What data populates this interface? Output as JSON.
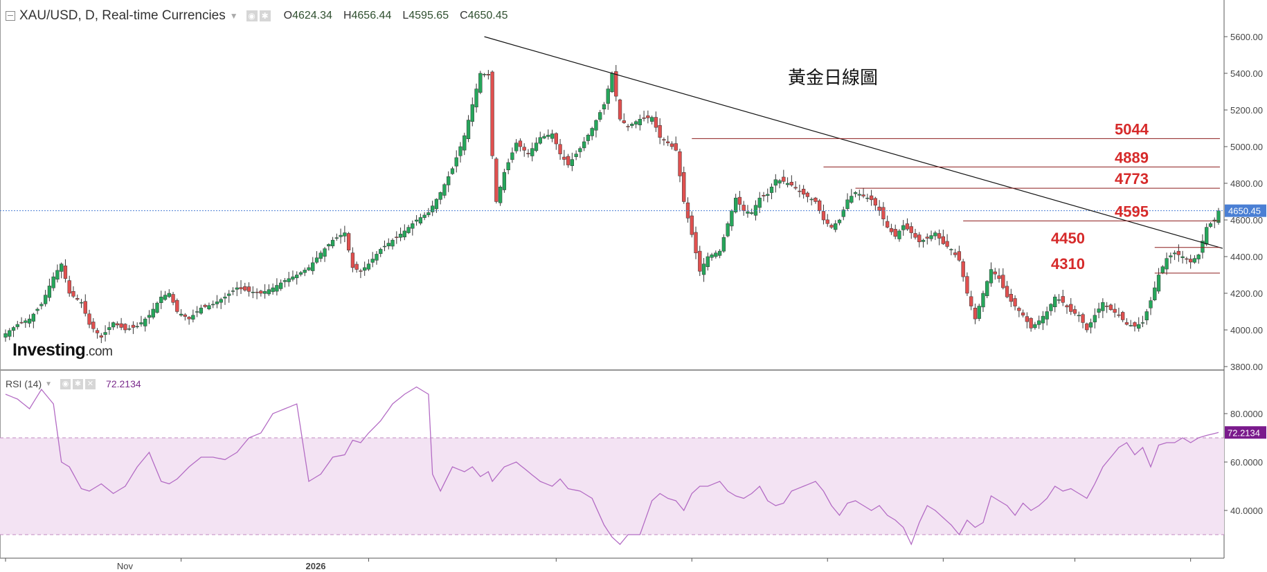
{
  "header": {
    "symbol": "XAU/USD, D, Real-time Currencies",
    "open_label": "O",
    "open": "4624.34",
    "high_label": "H",
    "high": "4656.44",
    "low_label": "L",
    "low": "4595.65",
    "close_label": "C",
    "close": "4650.45"
  },
  "rsi_header": {
    "label": "RSI (14)",
    "value": "72.2134"
  },
  "logo": {
    "brand": "Investing",
    "suffix": ".com"
  },
  "annotation_title": "黃金日線圖",
  "colors": {
    "up": "#26a65b",
    "down": "#e0504f",
    "level": "#8b1a1a",
    "level_text": "#d62a2a",
    "rsi": "#b36bc4",
    "rsi_band": "#f3e3f3",
    "price_tag": "#4a7fd4",
    "rsi_tag": "#7a1a8c"
  },
  "chart_data": [
    {
      "type": "candlestick",
      "title": "XAU/USD, D, Real-time Currencies",
      "ylim": [
        3800,
        5800
      ],
      "y_ticks": [
        "5600.00",
        "5400.00",
        "5200.00",
        "5000.00",
        "4800.00",
        "4600.00",
        "4400.00",
        "4200.00",
        "4000.00",
        "3800.00"
      ],
      "x_tick_labels": [
        "Nov",
        "2026"
      ],
      "last_price": "4650.45",
      "resistance_support_levels": [
        "5044",
        "4889",
        "4773",
        "4595",
        "4450",
        "4310"
      ],
      "trendline": {
        "from": 5600,
        "to": 4445
      },
      "anchors": [
        [
          0,
          3980
        ],
        [
          3,
          4030
        ],
        [
          6,
          4060
        ],
        [
          9,
          4140
        ],
        [
          12,
          4290
        ],
        [
          14,
          4360
        ],
        [
          16,
          4200
        ],
        [
          19,
          4150
        ],
        [
          21,
          4030
        ],
        [
          24,
          3960
        ],
        [
          27,
          4040
        ],
        [
          30,
          4000
        ],
        [
          33,
          4020
        ],
        [
          36,
          4080
        ],
        [
          39,
          4180
        ],
        [
          41,
          4200
        ],
        [
          43,
          4100
        ],
        [
          46,
          4060
        ],
        [
          49,
          4120
        ],
        [
          52,
          4140
        ],
        [
          55,
          4180
        ],
        [
          58,
          4230
        ],
        [
          61,
          4210
        ],
        [
          64,
          4200
        ],
        [
          67,
          4230
        ],
        [
          70,
          4270
        ],
        [
          73,
          4300
        ],
        [
          76,
          4340
        ],
        [
          79,
          4420
        ],
        [
          82,
          4490
        ],
        [
          85,
          4530
        ],
        [
          87,
          4340
        ],
        [
          89,
          4320
        ],
        [
          91,
          4360
        ],
        [
          94,
          4440
        ],
        [
          97,
          4490
        ],
        [
          100,
          4540
        ],
        [
          103,
          4600
        ],
        [
          106,
          4640
        ],
        [
          109,
          4750
        ],
        [
          112,
          4880
        ],
        [
          115,
          5060
        ],
        [
          117,
          5230
        ],
        [
          119,
          5400
        ],
        [
          121,
          5390
        ],
        [
          122,
          4950
        ],
        [
          123,
          4700
        ],
        [
          125,
          4860
        ],
        [
          128,
          5020
        ],
        [
          131,
          4960
        ],
        [
          134,
          5050
        ],
        [
          137,
          5070
        ],
        [
          139,
          4960
        ],
        [
          141,
          4900
        ],
        [
          144,
          4990
        ],
        [
          147,
          5100
        ],
        [
          150,
          5230
        ],
        [
          152,
          5400
        ],
        [
          154,
          5150
        ],
        [
          156,
          5110
        ],
        [
          159,
          5150
        ],
        [
          162,
          5160
        ],
        [
          164,
          5050
        ],
        [
          166,
          5020
        ],
        [
          168,
          4980
        ],
        [
          170,
          4700
        ],
        [
          172,
          4520
        ],
        [
          174,
          4320
        ],
        [
          176,
          4400
        ],
        [
          179,
          4430
        ],
        [
          181,
          4580
        ],
        [
          183,
          4720
        ],
        [
          185,
          4650
        ],
        [
          187,
          4640
        ],
        [
          189,
          4720
        ],
        [
          191,
          4740
        ],
        [
          193,
          4820
        ],
        [
          195,
          4810
        ],
        [
          197,
          4790
        ],
        [
          200,
          4740
        ],
        [
          203,
          4700
        ],
        [
          205,
          4600
        ],
        [
          207,
          4560
        ],
        [
          209,
          4600
        ],
        [
          211,
          4710
        ],
        [
          213,
          4750
        ],
        [
          215,
          4730
        ],
        [
          217,
          4710
        ],
        [
          219,
          4650
        ],
        [
          221,
          4560
        ],
        [
          223,
          4510
        ],
        [
          225,
          4570
        ],
        [
          227,
          4530
        ],
        [
          229,
          4480
        ],
        [
          231,
          4500
        ],
        [
          233,
          4530
        ],
        [
          235,
          4470
        ],
        [
          237,
          4440
        ],
        [
          239,
          4380
        ],
        [
          241,
          4200
        ],
        [
          243,
          4060
        ],
        [
          245,
          4200
        ],
        [
          247,
          4330
        ],
        [
          249,
          4280
        ],
        [
          251,
          4180
        ],
        [
          253,
          4130
        ],
        [
          255,
          4080
        ],
        [
          257,
          4010
        ],
        [
          259,
          4050
        ],
        [
          261,
          4100
        ],
        [
          263,
          4180
        ],
        [
          265,
          4150
        ],
        [
          267,
          4100
        ],
        [
          269,
          4080
        ],
        [
          271,
          4000
        ],
        [
          273,
          4080
        ],
        [
          275,
          4150
        ],
        [
          277,
          4110
        ],
        [
          279,
          4080
        ],
        [
          281,
          4030
        ],
        [
          283,
          4020
        ],
        [
          285,
          4040
        ],
        [
          287,
          4160
        ],
        [
          289,
          4300
        ],
        [
          291,
          4390
        ],
        [
          293,
          4420
        ],
        [
          295,
          4400
        ],
        [
          297,
          4370
        ],
        [
          299,
          4410
        ],
        [
          301,
          4560
        ],
        [
          303,
          4600
        ],
        [
          304,
          4650
        ]
      ],
      "bar_count": 305
    },
    {
      "type": "line",
      "title": "RSI (14)",
      "ylim": [
        20,
        95
      ],
      "y_ticks": [
        "80.0000",
        "60.0000",
        "40.0000"
      ],
      "band": [
        30,
        70
      ],
      "last_value": "72.2134",
      "points": [
        [
          0,
          88
        ],
        [
          3,
          86
        ],
        [
          6,
          82
        ],
        [
          9,
          90
        ],
        [
          12,
          84
        ],
        [
          14,
          60
        ],
        [
          16,
          58
        ],
        [
          19,
          49
        ],
        [
          21,
          48
        ],
        [
          24,
          51
        ],
        [
          27,
          47
        ],
        [
          30,
          50
        ],
        [
          33,
          58
        ],
        [
          36,
          64
        ],
        [
          39,
          52
        ],
        [
          41,
          51
        ],
        [
          43,
          53
        ],
        [
          46,
          58
        ],
        [
          49,
          62
        ],
        [
          52,
          62
        ],
        [
          55,
          61
        ],
        [
          58,
          64
        ],
        [
          61,
          70
        ],
        [
          64,
          72
        ],
        [
          67,
          80
        ],
        [
          70,
          82
        ],
        [
          73,
          84
        ],
        [
          76,
          52
        ],
        [
          79,
          55
        ],
        [
          82,
          62
        ],
        [
          85,
          63
        ],
        [
          87,
          69
        ],
        [
          89,
          68
        ],
        [
          91,
          72
        ],
        [
          94,
          77
        ],
        [
          97,
          84
        ],
        [
          100,
          88
        ],
        [
          103,
          91
        ],
        [
          106,
          88
        ],
        [
          107,
          55
        ],
        [
          109,
          48
        ],
        [
          112,
          58
        ],
        [
          115,
          56
        ],
        [
          117,
          58
        ],
        [
          119,
          54
        ],
        [
          121,
          56
        ],
        [
          122,
          52
        ],
        [
          125,
          58
        ],
        [
          128,
          60
        ],
        [
          131,
          56
        ],
        [
          134,
          52
        ],
        [
          137,
          50
        ],
        [
          139,
          53
        ],
        [
          141,
          49
        ],
        [
          144,
          48
        ],
        [
          147,
          45
        ],
        [
          150,
          34
        ],
        [
          152,
          29
        ],
        [
          154,
          26
        ],
        [
          156,
          30
        ],
        [
          159,
          30
        ],
        [
          162,
          44
        ],
        [
          164,
          47
        ],
        [
          166,
          45
        ],
        [
          168,
          44
        ],
        [
          170,
          40
        ],
        [
          172,
          47
        ],
        [
          174,
          50
        ],
        [
          176,
          50
        ],
        [
          179,
          52
        ],
        [
          181,
          48
        ],
        [
          183,
          46
        ],
        [
          185,
          45
        ],
        [
          187,
          47
        ],
        [
          189,
          50
        ],
        [
          191,
          44
        ],
        [
          193,
          42
        ],
        [
          195,
          43
        ],
        [
          197,
          48
        ],
        [
          200,
          50
        ],
        [
          203,
          52
        ],
        [
          205,
          48
        ],
        [
          207,
          42
        ],
        [
          209,
          38
        ],
        [
          211,
          43
        ],
        [
          213,
          44
        ],
        [
          215,
          42
        ],
        [
          217,
          40
        ],
        [
          219,
          42
        ],
        [
          221,
          38
        ],
        [
          223,
          36
        ],
        [
          225,
          33
        ],
        [
          227,
          26
        ],
        [
          229,
          35
        ],
        [
          231,
          42
        ],
        [
          233,
          40
        ],
        [
          235,
          37
        ],
        [
          237,
          34
        ],
        [
          239,
          30
        ],
        [
          241,
          36
        ],
        [
          243,
          33
        ],
        [
          245,
          35
        ],
        [
          247,
          46
        ],
        [
          249,
          44
        ],
        [
          251,
          42
        ],
        [
          253,
          38
        ],
        [
          255,
          43
        ],
        [
          257,
          40
        ],
        [
          259,
          42
        ],
        [
          261,
          45
        ],
        [
          263,
          50
        ],
        [
          265,
          48
        ],
        [
          267,
          49
        ],
        [
          269,
          47
        ],
        [
          271,
          45
        ],
        [
          273,
          51
        ],
        [
          275,
          58
        ],
        [
          277,
          62
        ],
        [
          279,
          66
        ],
        [
          281,
          68
        ],
        [
          283,
          63
        ],
        [
          285,
          66
        ],
        [
          287,
          58
        ],
        [
          289,
          67
        ],
        [
          291,
          68
        ],
        [
          293,
          68
        ],
        [
          295,
          70
        ],
        [
          297,
          68
        ],
        [
          299,
          70
        ],
        [
          301,
          71
        ],
        [
          304,
          72.2
        ]
      ]
    }
  ]
}
